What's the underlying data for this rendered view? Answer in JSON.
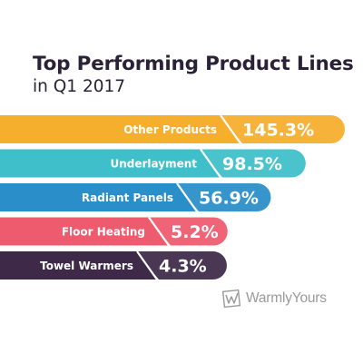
{
  "chart_data": {
    "type": "bar",
    "title": "Top Performing Product Lines",
    "subtitle": "in Q1 2017",
    "categories": [
      "Other Products",
      "Underlayment",
      "Radiant Panels",
      "Floor Heating",
      "Towel Warmers"
    ],
    "values": [
      145.3,
      98.5,
      56.9,
      5.2,
      4.3
    ],
    "value_labels": [
      "145.3%",
      "98.5%",
      "56.9%",
      "5.2%",
      "4.3%"
    ],
    "colors": [
      "#f6ae2d",
      "#3fbfca",
      "#2a8ec9",
      "#ee5b6e",
      "#3e2a48"
    ]
  },
  "brand": {
    "name": "WarmlyYours",
    "logo_icon": "warmlyyours-logo-icon"
  }
}
